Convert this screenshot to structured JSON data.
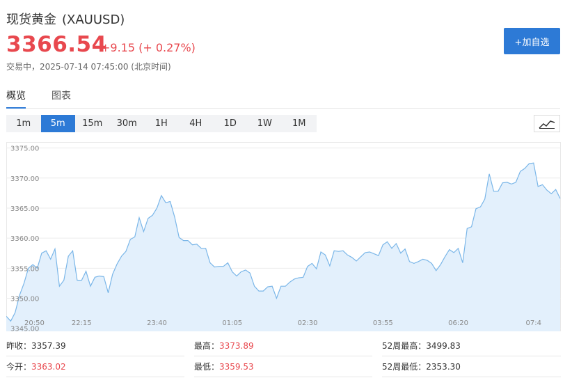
{
  "header": {
    "name": "现货黄金",
    "symbol": "(XAUUSD)",
    "price": "3366.54",
    "change": "+9.15 (+ 0.27%)",
    "status": "交易中，2025-07-14 07:45:00 (北京时间)",
    "add_button": "+加自选"
  },
  "tabs": [
    "概览",
    "图表"
  ],
  "periods": [
    "1m",
    "5m",
    "15m",
    "30m",
    "1H",
    "4H",
    "1D",
    "1W",
    "1M"
  ],
  "active_period": "5m",
  "chart_type_icon": "line-chart-icon",
  "colors": {
    "up": "#e8484e",
    "accent": "#2d7ad6",
    "line": "#7ab6e8",
    "fill": "#e3f0fc"
  },
  "chart_data": {
    "type": "area",
    "y_ticks": [
      "3375.00",
      "3370.00",
      "3365.00",
      "3360.00",
      "3355.00",
      "3350.00",
      "3345.00"
    ],
    "ylim": [
      3344.5,
      3376
    ],
    "x_ticks": [
      "20:50",
      "22:15",
      "23:40",
      "01:05",
      "02:30",
      "03:55",
      "06:20",
      "07:4"
    ],
    "x_tick_index": [
      0,
      17,
      34,
      51,
      68,
      85,
      102,
      119
    ],
    "grid": "horizontal",
    "values": [
      3347.0,
      3346.2,
      3347.6,
      3350.5,
      3352.5,
      3355.0,
      3355.6,
      3355.0,
      3357.5,
      3357.9,
      3356.5,
      3358.2,
      3352.0,
      3353.0,
      3357.0,
      3357.9,
      3353.0,
      3353.0,
      3354.5,
      3352.0,
      3353.5,
      3353.7,
      3353.6,
      3350.9,
      3354.0,
      3355.7,
      3357.0,
      3357.8,
      3359.8,
      3360.2,
      3363.4,
      3361.1,
      3363.3,
      3363.8,
      3365.0,
      3367.1,
      3365.9,
      3366.1,
      3363.5,
      3360.1,
      3359.6,
      3359.6,
      3358.9,
      3359.0,
      3358.3,
      3358.3,
      3355.9,
      3355.2,
      3355.3,
      3355.3,
      3355.9,
      3354.4,
      3353.7,
      3354.4,
      3354.7,
      3354.2,
      3352.0,
      3351.2,
      3351.2,
      3351.9,
      3352.0,
      3350.0,
      3352.0,
      3352.0,
      3352.7,
      3353.2,
      3353.4,
      3353.5,
      3355.3,
      3355.8,
      3354.9,
      3357.7,
      3357.2,
      3355.4,
      3357.9,
      3357.8,
      3357.9,
      3357.2,
      3356.8,
      3356.2,
      3356.9,
      3357.6,
      3357.7,
      3357.4,
      3357.1,
      3358.9,
      3359.4,
      3358.3,
      3359.1,
      3357.5,
      3358.2,
      3356.1,
      3355.8,
      3356.1,
      3356.5,
      3356.3,
      3355.8,
      3354.6,
      3355.6,
      3356.9,
      3358.1,
      3357.6,
      3358.3,
      3355.9,
      3361.6,
      3361.9,
      3364.9,
      3365.2,
      3366.5,
      3370.7,
      3367.8,
      3367.8,
      3369.2,
      3369.3,
      3369.0,
      3369.3,
      3371.1,
      3371.6,
      3372.4,
      3372.5,
      3368.6,
      3368.9,
      3368.0,
      3367.4,
      3368.1,
      3366.6
    ]
  },
  "stats": [
    {
      "label": "昨收：",
      "value": "3357.39",
      "red": false
    },
    {
      "label": "最高：",
      "value": "3373.89",
      "red": true
    },
    {
      "label": "52周最高：",
      "value": "3499.83",
      "red": false
    },
    {
      "label": "今开：",
      "value": "3363.02",
      "red": true
    },
    {
      "label": "最低：",
      "value": "3359.53",
      "red": true
    },
    {
      "label": "52周最低：",
      "value": "2353.30",
      "red": false
    }
  ]
}
